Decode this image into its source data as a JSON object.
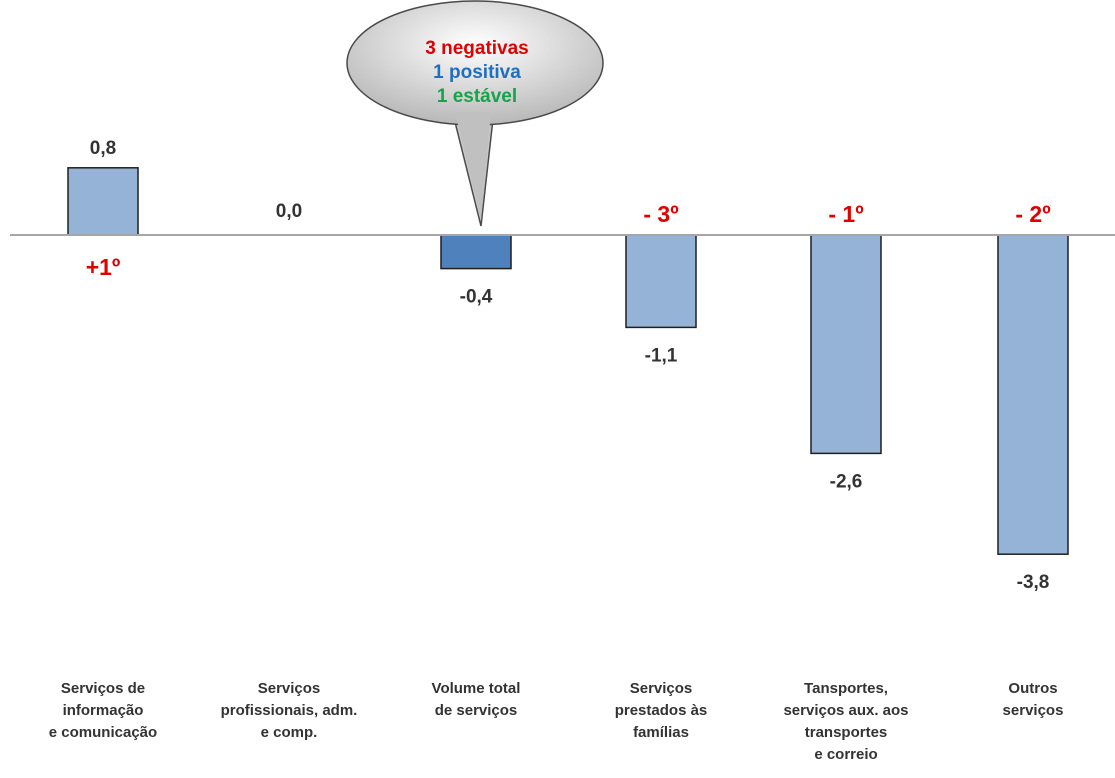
{
  "chart_data": {
    "type": "bar",
    "categories": [
      [
        "Serviços de",
        "informação",
        "e comunicação"
      ],
      [
        "Serviços",
        "profissionais, adm.",
        "e comp."
      ],
      [
        "Volume total",
        "de serviços"
      ],
      [
        "Serviços",
        "prestados às",
        "famílias"
      ],
      [
        "Tansportes,",
        "serviços aux. aos",
        "transportes",
        "e correio"
      ],
      [
        "Outros",
        "serviços"
      ]
    ],
    "values": [
      0.8,
      0.0,
      -0.4,
      -1.1,
      -2.6,
      -3.8
    ],
    "value_labels": [
      "0,8",
      "0,0",
      "-0,4",
      "-1,1",
      "-2,6",
      "-3,8"
    ],
    "rank_labels": [
      "+1º",
      "",
      "",
      "- 3º",
      "- 1º",
      "- 2º"
    ],
    "highlight_index": 2,
    "colors": {
      "bar": "#95B3D7",
      "bar_highlight": "#4F81BD",
      "bar_stroke": "#1F1F1F",
      "axis": "#A6A6A6",
      "rank": "#E00000"
    },
    "callout": {
      "lines": [
        {
          "text": "3 negativas",
          "color": "#E00000"
        },
        {
          "text": "1 positiva",
          "color": "#1F6FC0"
        },
        {
          "text": "1 estável",
          "color": "#16A34A"
        }
      ]
    },
    "ylim": [
      -3.8,
      0.8
    ],
    "grid": false,
    "legend": "none"
  }
}
